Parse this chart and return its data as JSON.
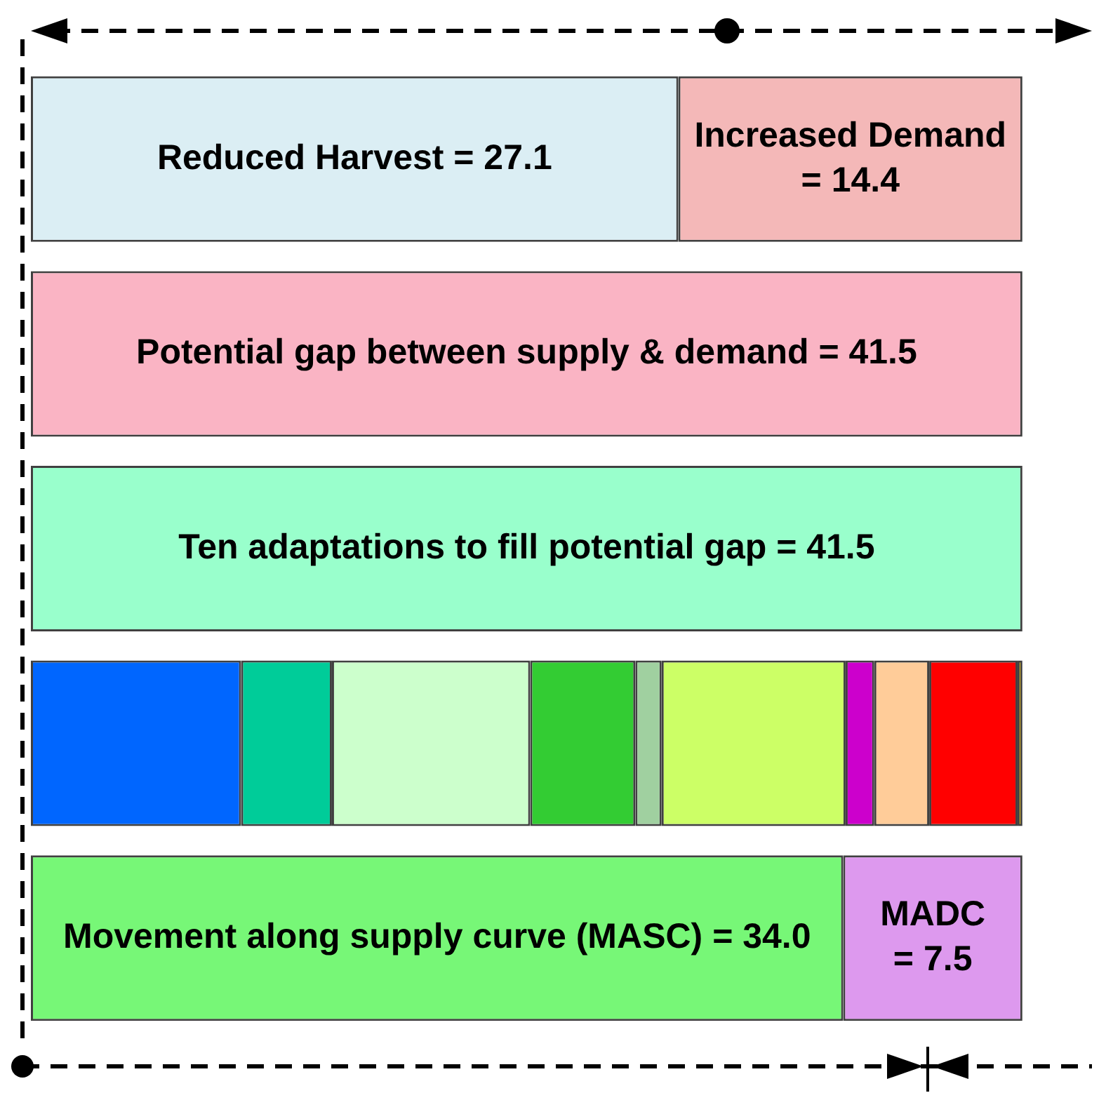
{
  "chart_data": {
    "type": "bar",
    "orientation": "horizontal",
    "stacked": true,
    "legend": false,
    "tick_labels": false,
    "categories": [
      null,
      null,
      null,
      null,
      null
    ],
    "series": [
      {
        "values": [
          27.1,
          41.5,
          41.5,
          8.8,
          34.0
        ],
        "colors": [
          "#dbeef4",
          "#fab4c4",
          "#99ffcc",
          "#0066ff",
          "#77f777"
        ],
        "value_labels": [
          "Reduced Harvest = 27.1",
          "Potential gap between supply & demand = 41.5",
          "Ten adaptations to fill potential gap = 41.5",
          null,
          "Movement along supply curve (MASC) = 34.0"
        ]
      },
      {
        "values": [
          14.4,
          null,
          null,
          3.8,
          7.5
        ],
        "colors": [
          "#f4b8b8",
          null,
          null,
          "#00cc99",
          "#dd99ee"
        ],
        "value_labels": [
          "Increased Demand = 14.4",
          null,
          null,
          null,
          "MADC = 7.5"
        ]
      },
      {
        "values": [
          null,
          null,
          null,
          8.3,
          null
        ],
        "colors": [
          null,
          null,
          null,
          "#ccffcc",
          null
        ]
      },
      {
        "values": [
          null,
          null,
          null,
          4.4,
          null
        ],
        "colors": [
          null,
          null,
          null,
          "#33cc33",
          null
        ]
      },
      {
        "values": [
          null,
          null,
          null,
          1.1,
          null
        ],
        "colors": [
          null,
          null,
          null,
          "#a0d0a0",
          null
        ]
      },
      {
        "values": [
          null,
          null,
          null,
          7.7,
          null
        ],
        "colors": [
          null,
          null,
          null,
          "#ccff66",
          null
        ]
      },
      {
        "values": [
          null,
          null,
          null,
          1.2,
          null
        ],
        "colors": [
          null,
          null,
          null,
          "#cc00cc",
          null
        ]
      },
      {
        "values": [
          null,
          null,
          null,
          2.3,
          null
        ],
        "colors": [
          null,
          null,
          null,
          "#ffcc99",
          null
        ]
      },
      {
        "values": [
          null,
          null,
          null,
          3.7,
          null
        ],
        "colors": [
          null,
          null,
          null,
          "#ff0000",
          null
        ]
      },
      {
        "values": [
          null,
          null,
          null,
          0.2,
          null
        ],
        "colors": [
          null,
          null,
          null,
          "#ffcc00",
          null
        ]
      }
    ]
  }
}
